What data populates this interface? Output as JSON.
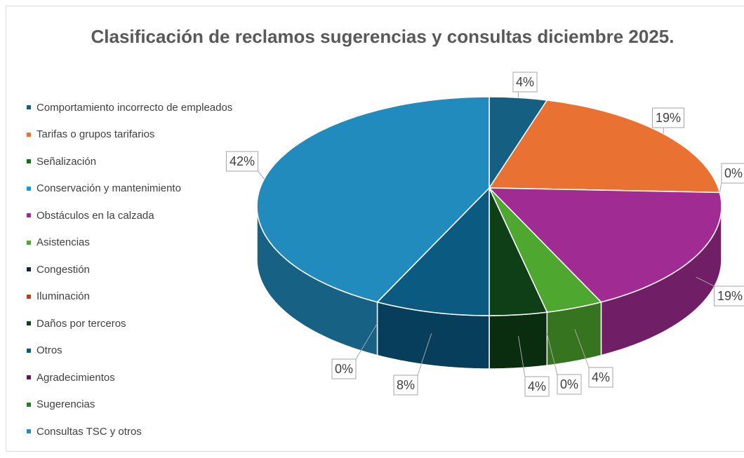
{
  "chart_data": {
    "type": "pie",
    "title": "Clasificación de reclamos sugerencias y consultas diciembre 2025.",
    "categories": [
      "Comportamiento incorrecto de empleados",
      "Tarifas o grupos tarifarios",
      "Señalización",
      "Conservación y mantenimiento",
      "Obstáculos en la calzada",
      "Asistencias",
      "Congestión",
      "Iluminación",
      "Daños por terceros",
      "Otros",
      "Agradecimientos",
      "Sugerencias",
      "Consultas TSC y otros"
    ],
    "values": [
      4,
      19,
      0,
      0,
      19,
      4,
      0,
      0,
      4,
      8,
      0,
      0,
      42
    ],
    "value_labels": [
      "4%",
      "19%",
      "0%",
      null,
      "19%",
      "4%",
      "0%",
      null,
      "4%",
      "8%",
      "0%",
      null,
      "42%"
    ],
    "colors": [
      "#155f82",
      "#e97132",
      "#196b24",
      "#0f9ed5",
      "#a02b93",
      "#4ea72e",
      "#0e2841",
      "#a9481d",
      "#0f3f16",
      "#0b5a82",
      "#5d1a52",
      "#2a7a2a",
      "#218bbd"
    ],
    "legend": "left"
  }
}
